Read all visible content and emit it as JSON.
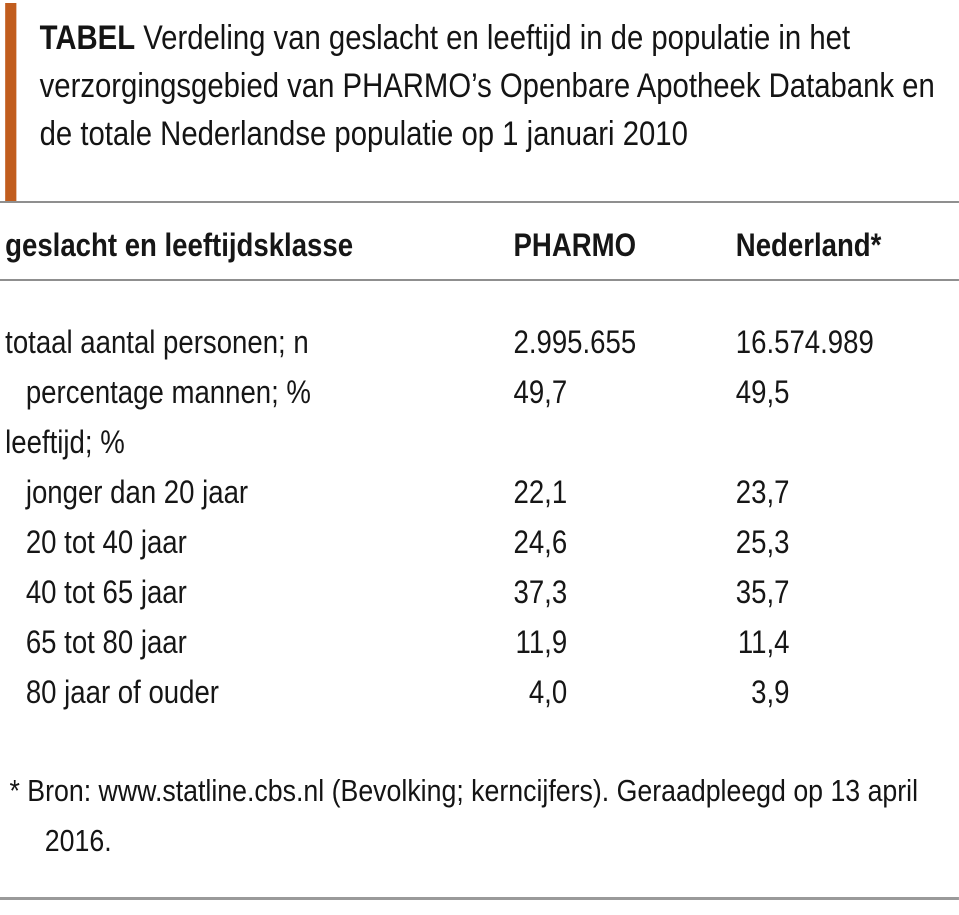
{
  "title": {
    "tag": "TABEL",
    "text": "Verdeling van geslacht en leeftijd in de populatie in het verzorgingsgebied van PHARMO’s Openbare Apotheek Databank en de totale Nederlandse populatie op 1 januari 2010"
  },
  "table": {
    "columns": [
      "geslacht en leeftijdsklasse",
      "PHARMO",
      "Nederland*"
    ],
    "rows": [
      {
        "label": "totaal aantal personen; n",
        "indent": false,
        "pharmo": "2.995.655",
        "nederland": "16.574.989",
        "numeric_style": "count"
      },
      {
        "label": "percentage mannen; %",
        "indent": true,
        "pharmo": "49,7",
        "nederland": "49,5",
        "numeric_style": "decimal"
      },
      {
        "label": "leeftijd; %",
        "indent": false,
        "pharmo": "",
        "nederland": "",
        "numeric_style": "none"
      },
      {
        "label": "jonger dan 20 jaar",
        "indent": true,
        "pharmo": "22,1",
        "nederland": "23,7",
        "numeric_style": "decimal"
      },
      {
        "label": "20 tot 40 jaar",
        "indent": true,
        "pharmo": "24,6",
        "nederland": "25,3",
        "numeric_style": "decimal"
      },
      {
        "label": "40 tot 65 jaar",
        "indent": true,
        "pharmo": "37,3",
        "nederland": "35,7",
        "numeric_style": "decimal"
      },
      {
        "label": "65 tot 80 jaar",
        "indent": true,
        "pharmo": "11,9",
        "nederland": "11,4",
        "numeric_style": "decimal"
      },
      {
        "label": "80 jaar of ouder",
        "indent": true,
        "pharmo": "4,0",
        "nederland": "3,9",
        "numeric_style": "decimal"
      }
    ]
  },
  "footnote": {
    "text": "* Bron: www.statline.cbs.nl (Bevolking; kerncijfers). Geraadpleegd op 13 april 2016."
  },
  "colors": {
    "accent": "#C15D1E",
    "rule": "#8F8F8F",
    "text": "#161616"
  }
}
